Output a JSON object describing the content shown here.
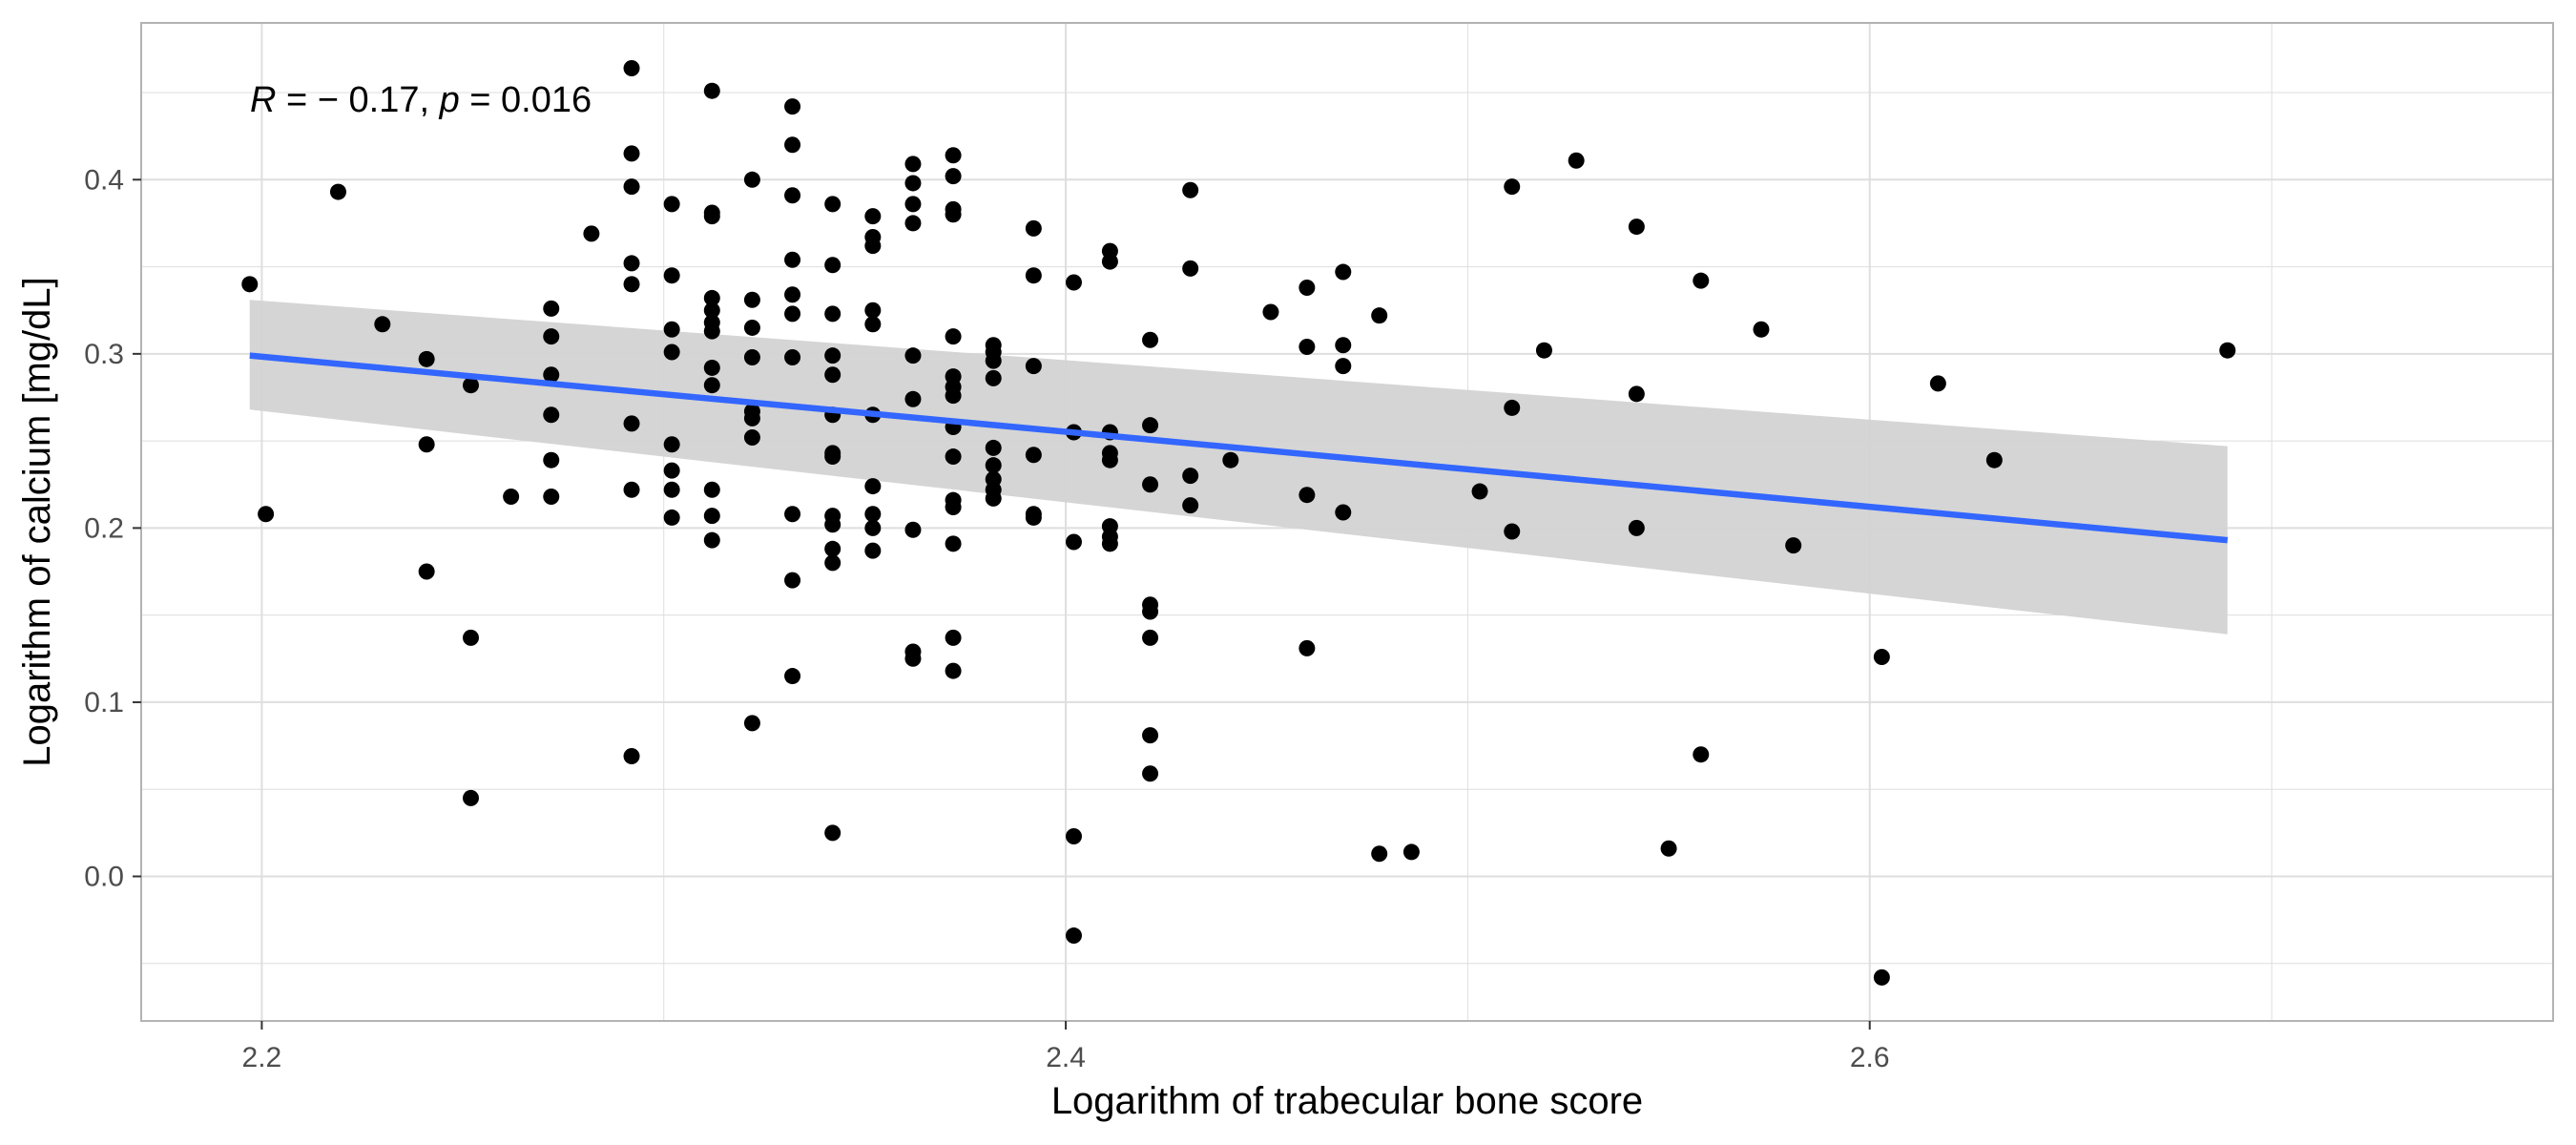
{
  "chart_data": {
    "type": "scatter",
    "xlabel": "Logarithm of trabecular bone score",
    "ylabel": "Logarithm of calcium [mg/dL]",
    "annotation": {
      "r_symbol": "R",
      "r_value": " = − 0.17, ",
      "p_symbol": "p",
      "p_value": " = 0.016"
    },
    "xlim": [
      2.17,
      2.77
    ],
    "ylim": [
      -0.083,
      0.49
    ],
    "x_ticks": [
      2.2,
      2.4,
      2.6
    ],
    "x_tick_labels": [
      "2.2",
      "2.4",
      "2.6"
    ],
    "y_ticks": [
      0.0,
      0.1,
      0.2,
      0.3,
      0.4
    ],
    "y_tick_labels": [
      "0.0",
      "0.1",
      "0.2",
      "0.3",
      "0.4"
    ],
    "grid": true,
    "regression": {
      "x": [
        2.197,
        2.689
      ],
      "y": [
        0.299,
        0.193
      ],
      "ci_upper": [
        0.331,
        0.247
      ],
      "ci_lower": [
        0.268,
        0.139
      ]
    },
    "colors": {
      "points": "#000000",
      "line": "#3366ff",
      "band": "#d3d3d3",
      "grid": "#dedede",
      "panel_border": "#b3b3b3"
    },
    "points": [
      [
        2.197,
        0.34
      ],
      [
        2.201,
        0.208
      ],
      [
        2.219,
        0.393
      ],
      [
        2.23,
        0.317
      ],
      [
        2.241,
        0.297
      ],
      [
        2.241,
        0.248
      ],
      [
        2.241,
        0.175
      ],
      [
        2.252,
        0.282
      ],
      [
        2.252,
        0.137
      ],
      [
        2.252,
        0.045
      ],
      [
        2.262,
        0.218
      ],
      [
        2.272,
        0.326
      ],
      [
        2.272,
        0.31
      ],
      [
        2.272,
        0.288
      ],
      [
        2.272,
        0.265
      ],
      [
        2.272,
        0.239
      ],
      [
        2.272,
        0.218
      ],
      [
        2.282,
        0.369
      ],
      [
        2.292,
        0.464
      ],
      [
        2.292,
        0.415
      ],
      [
        2.292,
        0.396
      ],
      [
        2.292,
        0.352
      ],
      [
        2.292,
        0.34
      ],
      [
        2.292,
        0.26
      ],
      [
        2.292,
        0.222
      ],
      [
        2.292,
        0.069
      ],
      [
        2.302,
        0.386
      ],
      [
        2.302,
        0.345
      ],
      [
        2.302,
        0.314
      ],
      [
        2.302,
        0.301
      ],
      [
        2.302,
        0.248
      ],
      [
        2.302,
        0.233
      ],
      [
        2.302,
        0.222
      ],
      [
        2.302,
        0.206
      ],
      [
        2.312,
        0.451
      ],
      [
        2.312,
        0.381
      ],
      [
        2.312,
        0.379
      ],
      [
        2.312,
        0.332
      ],
      [
        2.312,
        0.325
      ],
      [
        2.312,
        0.318
      ],
      [
        2.312,
        0.313
      ],
      [
        2.312,
        0.292
      ],
      [
        2.312,
        0.282
      ],
      [
        2.312,
        0.222
      ],
      [
        2.312,
        0.207
      ],
      [
        2.312,
        0.193
      ],
      [
        2.322,
        0.4
      ],
      [
        2.322,
        0.331
      ],
      [
        2.322,
        0.315
      ],
      [
        2.322,
        0.298
      ],
      [
        2.322,
        0.267
      ],
      [
        2.322,
        0.263
      ],
      [
        2.322,
        0.252
      ],
      [
        2.322,
        0.088
      ],
      [
        2.332,
        0.442
      ],
      [
        2.332,
        0.42
      ],
      [
        2.332,
        0.391
      ],
      [
        2.332,
        0.354
      ],
      [
        2.332,
        0.334
      ],
      [
        2.332,
        0.323
      ],
      [
        2.332,
        0.298
      ],
      [
        2.332,
        0.208
      ],
      [
        2.332,
        0.17
      ],
      [
        2.332,
        0.115
      ],
      [
        2.342,
        0.386
      ],
      [
        2.342,
        0.351
      ],
      [
        2.342,
        0.323
      ],
      [
        2.342,
        0.299
      ],
      [
        2.342,
        0.288
      ],
      [
        2.342,
        0.265
      ],
      [
        2.342,
        0.243
      ],
      [
        2.342,
        0.241
      ],
      [
        2.342,
        0.207
      ],
      [
        2.342,
        0.202
      ],
      [
        2.342,
        0.188
      ],
      [
        2.342,
        0.18
      ],
      [
        2.342,
        0.025
      ],
      [
        2.352,
        0.379
      ],
      [
        2.352,
        0.367
      ],
      [
        2.352,
        0.362
      ],
      [
        2.352,
        0.325
      ],
      [
        2.352,
        0.317
      ],
      [
        2.352,
        0.265
      ],
      [
        2.352,
        0.224
      ],
      [
        2.352,
        0.208
      ],
      [
        2.352,
        0.2
      ],
      [
        2.352,
        0.187
      ],
      [
        2.362,
        0.409
      ],
      [
        2.362,
        0.398
      ],
      [
        2.362,
        0.386
      ],
      [
        2.362,
        0.375
      ],
      [
        2.362,
        0.299
      ],
      [
        2.362,
        0.274
      ],
      [
        2.362,
        0.199
      ],
      [
        2.362,
        0.129
      ],
      [
        2.362,
        0.125
      ],
      [
        2.372,
        0.414
      ],
      [
        2.372,
        0.402
      ],
      [
        2.372,
        0.383
      ],
      [
        2.372,
        0.38
      ],
      [
        2.372,
        0.31
      ],
      [
        2.372,
        0.287
      ],
      [
        2.372,
        0.281
      ],
      [
        2.372,
        0.276
      ],
      [
        2.372,
        0.258
      ],
      [
        2.372,
        0.241
      ],
      [
        2.372,
        0.216
      ],
      [
        2.372,
        0.212
      ],
      [
        2.372,
        0.191
      ],
      [
        2.372,
        0.137
      ],
      [
        2.372,
        0.118
      ],
      [
        2.382,
        0.305
      ],
      [
        2.382,
        0.301
      ],
      [
        2.382,
        0.296
      ],
      [
        2.382,
        0.286
      ],
      [
        2.382,
        0.246
      ],
      [
        2.382,
        0.236
      ],
      [
        2.382,
        0.228
      ],
      [
        2.382,
        0.222
      ],
      [
        2.382,
        0.217
      ],
      [
        2.392,
        0.372
      ],
      [
        2.392,
        0.345
      ],
      [
        2.392,
        0.293
      ],
      [
        2.392,
        0.242
      ],
      [
        2.392,
        0.208
      ],
      [
        2.392,
        0.206
      ],
      [
        2.402,
        0.341
      ],
      [
        2.402,
        0.255
      ],
      [
        2.402,
        0.192
      ],
      [
        2.402,
        0.023
      ],
      [
        2.402,
        -0.034
      ],
      [
        2.411,
        0.359
      ],
      [
        2.411,
        0.353
      ],
      [
        2.411,
        0.255
      ],
      [
        2.411,
        0.243
      ],
      [
        2.411,
        0.239
      ],
      [
        2.411,
        0.201
      ],
      [
        2.411,
        0.195
      ],
      [
        2.411,
        0.191
      ],
      [
        2.421,
        0.308
      ],
      [
        2.421,
        0.259
      ],
      [
        2.421,
        0.225
      ],
      [
        2.421,
        0.156
      ],
      [
        2.421,
        0.152
      ],
      [
        2.421,
        0.137
      ],
      [
        2.421,
        0.081
      ],
      [
        2.421,
        0.059
      ],
      [
        2.431,
        0.394
      ],
      [
        2.431,
        0.349
      ],
      [
        2.431,
        0.23
      ],
      [
        2.431,
        0.213
      ],
      [
        2.441,
        0.239
      ],
      [
        2.451,
        0.324
      ],
      [
        2.46,
        0.338
      ],
      [
        2.46,
        0.304
      ],
      [
        2.46,
        0.219
      ],
      [
        2.46,
        0.131
      ],
      [
        2.469,
        0.347
      ],
      [
        2.469,
        0.305
      ],
      [
        2.469,
        0.293
      ],
      [
        2.469,
        0.209
      ],
      [
        2.478,
        0.322
      ],
      [
        2.478,
        0.013
      ],
      [
        2.486,
        0.014
      ],
      [
        2.503,
        0.221
      ],
      [
        2.511,
        0.396
      ],
      [
        2.511,
        0.269
      ],
      [
        2.511,
        0.198
      ],
      [
        2.519,
        0.302
      ],
      [
        2.527,
        0.411
      ],
      [
        2.542,
        0.373
      ],
      [
        2.542,
        0.277
      ],
      [
        2.542,
        0.2
      ],
      [
        2.55,
        0.016
      ],
      [
        2.558,
        0.342
      ],
      [
        2.558,
        0.07
      ],
      [
        2.573,
        0.314
      ],
      [
        2.581,
        0.19
      ],
      [
        2.603,
        0.126
      ],
      [
        2.603,
        -0.058
      ],
      [
        2.617,
        0.283
      ],
      [
        2.631,
        0.239
      ],
      [
        2.689,
        0.302
      ]
    ]
  }
}
